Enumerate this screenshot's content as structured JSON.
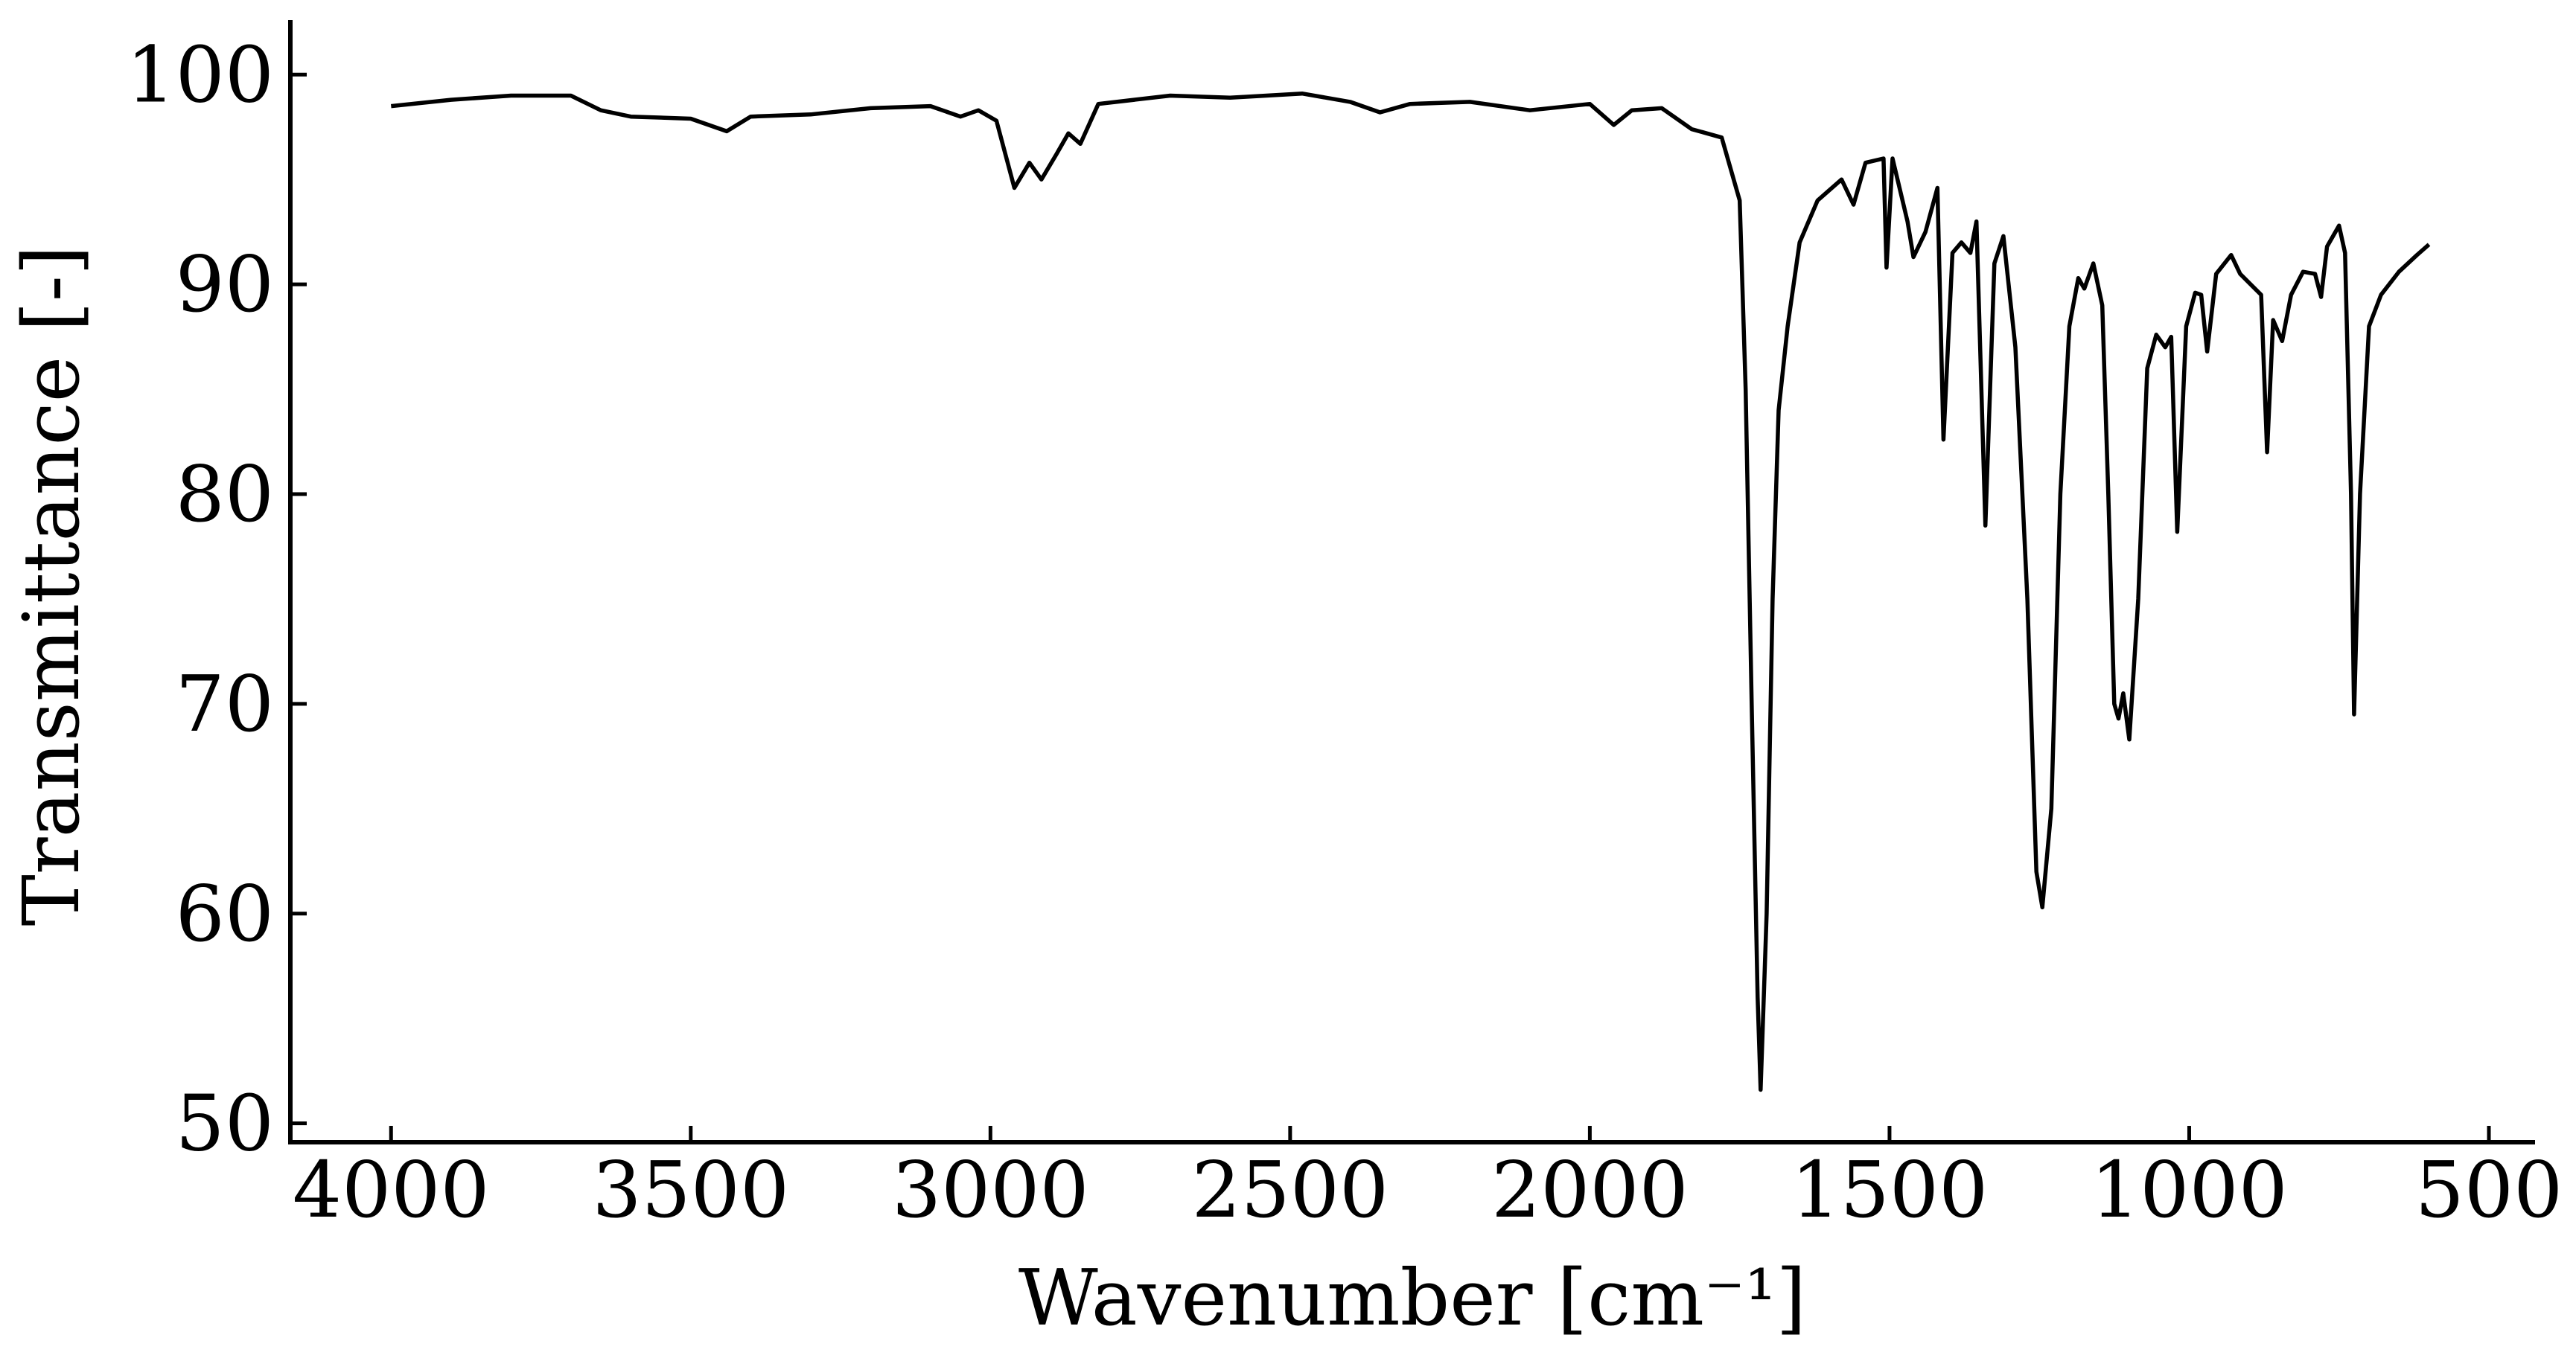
{
  "chart_data": {
    "type": "line",
    "xlabel": "Wavenumber [cm⁻¹]",
    "ylabel": "Transmittance [-]",
    "xlim": [
      4168,
      423
    ],
    "ylim": [
      49.1,
      102.6
    ],
    "xticks": [
      4000,
      3500,
      3000,
      2500,
      2000,
      1500,
      1000,
      500
    ],
    "yticks": [
      50,
      60,
      70,
      80,
      90,
      100
    ],
    "grid": false,
    "x": [
      4000,
      3900,
      3800,
      3700,
      3650,
      3600,
      3500,
      3440,
      3400,
      3300,
      3200,
      3100,
      3050,
      3020,
      2990,
      2960,
      2935,
      2915,
      2890,
      2870,
      2850,
      2820,
      2700,
      2600,
      2480,
      2400,
      2350,
      2300,
      2200,
      2100,
      2000,
      1960,
      1930,
      1880,
      1830,
      1780,
      1750,
      1740,
      1730,
      1720,
      1715,
      1705,
      1695,
      1685,
      1670,
      1650,
      1620,
      1580,
      1560,
      1540,
      1510,
      1505,
      1495,
      1470,
      1460,
      1440,
      1420,
      1410,
      1395,
      1380,
      1365,
      1355,
      1340,
      1325,
      1310,
      1290,
      1270,
      1255,
      1245,
      1230,
      1215,
      1200,
      1185,
      1175,
      1160,
      1145,
      1135,
      1125,
      1118,
      1110,
      1100,
      1085,
      1070,
      1055,
      1040,
      1030,
      1020,
      1005,
      990,
      980,
      970,
      955,
      930,
      915,
      880,
      870,
      860,
      845,
      830,
      810,
      790,
      780,
      770,
      750,
      740,
      730,
      725,
      715,
      700,
      680,
      650,
      620,
      600
    ],
    "series": [
      {
        "name": "spectrum",
        "color": "#000000",
        "values": [
          98.5,
          98.8,
          99.0,
          99.0,
          98.3,
          98.0,
          97.9,
          97.3,
          98.0,
          98.1,
          98.4,
          98.5,
          98.0,
          98.3,
          97.8,
          94.6,
          95.8,
          95.0,
          96.2,
          97.2,
          96.7,
          98.6,
          99.0,
          98.9,
          99.1,
          98.7,
          98.2,
          98.6,
          98.7,
          98.3,
          98.6,
          97.6,
          98.3,
          98.4,
          97.4,
          97.0,
          94.0,
          85,
          70,
          56,
          51.6,
          60,
          75,
          84,
          88,
          92,
          94,
          95,
          93.8,
          95.8,
          96,
          90.8,
          96,
          93,
          91.3,
          92.5,
          94.6,
          82.6,
          91.5,
          92,
          91.5,
          93,
          78.5,
          91,
          92.3,
          87,
          75,
          62,
          60.3,
          65,
          80,
          88,
          90.3,
          89.8,
          91,
          89,
          80,
          70,
          69.3,
          70.5,
          68.3,
          75,
          86,
          87.6,
          87,
          87.5,
          78.2,
          88,
          89.6,
          89.5,
          86.8,
          90.5,
          91.4,
          90.5,
          89.5,
          82,
          88.3,
          87.3,
          89.5,
          90.6,
          90.5,
          89.4,
          91.8,
          92.8,
          91.5,
          80,
          69.5,
          80,
          88,
          89.5,
          90.6,
          91.4,
          91.9
        ]
      }
    ]
  }
}
